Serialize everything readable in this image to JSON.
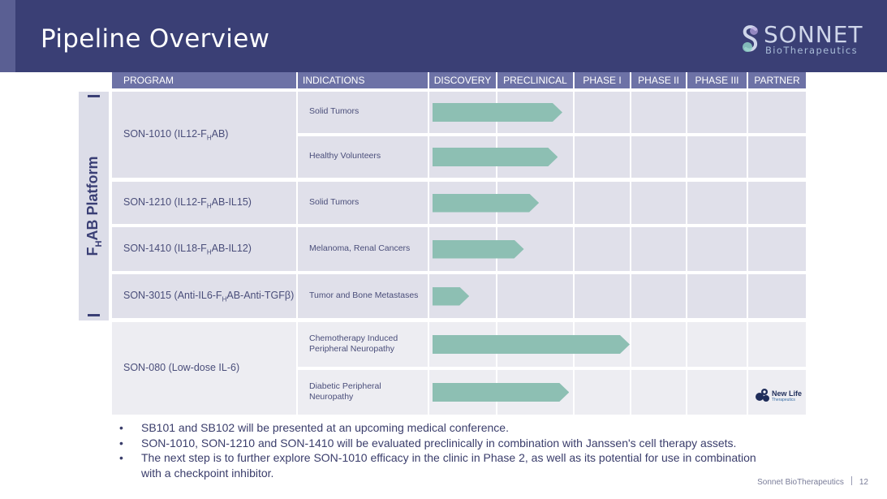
{
  "slide": {
    "title": "Pipeline Overview",
    "logo": {
      "name": "SONNET",
      "tagline": "BioTherapeutics"
    },
    "platform_label": {
      "prefix": "F",
      "sub": "H",
      "suffix": "AB Platform"
    }
  },
  "table": {
    "headers": [
      "PROGRAM",
      "INDICATIONS",
      "DISCOVERY",
      "PRECLINICAL",
      "PHASE I",
      "PHASE II",
      "PHASE III",
      "PARTNER"
    ],
    "programs": [
      {
        "pre": "SON-1010 (IL12-F",
        "sub": "H",
        "mid": "AB",
        "post": ")"
      },
      {
        "pre": "SON-1210 (IL12-F",
        "sub": "H",
        "mid": "AB",
        "post": "-IL15)"
      },
      {
        "pre": "SON-1410 (IL18-F",
        "sub": "H",
        "mid": "AB",
        "post": "-IL12)"
      },
      {
        "pre": "SON-3015 (Anti-IL6-F",
        "sub": "H",
        "mid": "AB",
        "post": "-Anti-TGFβ)"
      },
      {
        "pre": "SON-080 (Low-dose IL-6)",
        "sub": "",
        "mid": "",
        "post": ""
      }
    ],
    "indications": [
      {
        "line1": "Solid Tumors",
        "line2": "",
        "program": 0,
        "progress_to": "PRECLINICAL",
        "progress_fraction": 0.86
      },
      {
        "line1": "Healthy Volunteers",
        "line2": "",
        "program": 0,
        "progress_to": "PRECLINICAL",
        "progress_fraction": 0.8
      },
      {
        "line1": "Solid Tumors",
        "line2": "",
        "program": 1,
        "progress_to": "PRECLINICAL",
        "progress_fraction": 0.55
      },
      {
        "line1": "Melanoma, Renal Cancers",
        "line2": "",
        "program": 2,
        "progress_to": "PRECLINICAL",
        "progress_fraction": 0.35
      },
      {
        "line1": "Tumor and Bone Metastases",
        "line2": "",
        "program": 3,
        "progress_to": "DISCOVERY",
        "progress_fraction": 0.6
      },
      {
        "line1": "Chemotherapy Induced",
        "line2": "Peripheral Neuropathy",
        "program": 4,
        "progress_to": "PHASE I",
        "progress_fraction": 1.0
      },
      {
        "line1": "Diabetic Peripheral",
        "line2": "Neuropathy",
        "program": 4,
        "progress_to": "PRECLINICAL",
        "progress_fraction": 0.95
      }
    ],
    "partner": {
      "row": 6,
      "name": "New Life",
      "tagline": "Therapeutics"
    }
  },
  "bullets": [
    "SB101 and SB102 will be presented at an upcoming medical conference.",
    "SON-1010, SON-1210 and SON-1410 will be evaluated preclinically in combination with Janssen's cell therapy assets.",
    "The next step is to further explore SON-1010 efficacy in the clinic in Phase 2, as well as its potential for use in combination with a checkpoint inhibitor."
  ],
  "bullet_marker": "•",
  "footer": {
    "company": "Sonnet BioTherapeutics",
    "page": "12"
  },
  "colors": {
    "header_bg": "#3a3f75",
    "table_header_bg": "#6d72a6",
    "progress_bar": "#8dbfb3",
    "cell_bg": "#e0e0ea",
    "text": "#3a3d6b"
  }
}
